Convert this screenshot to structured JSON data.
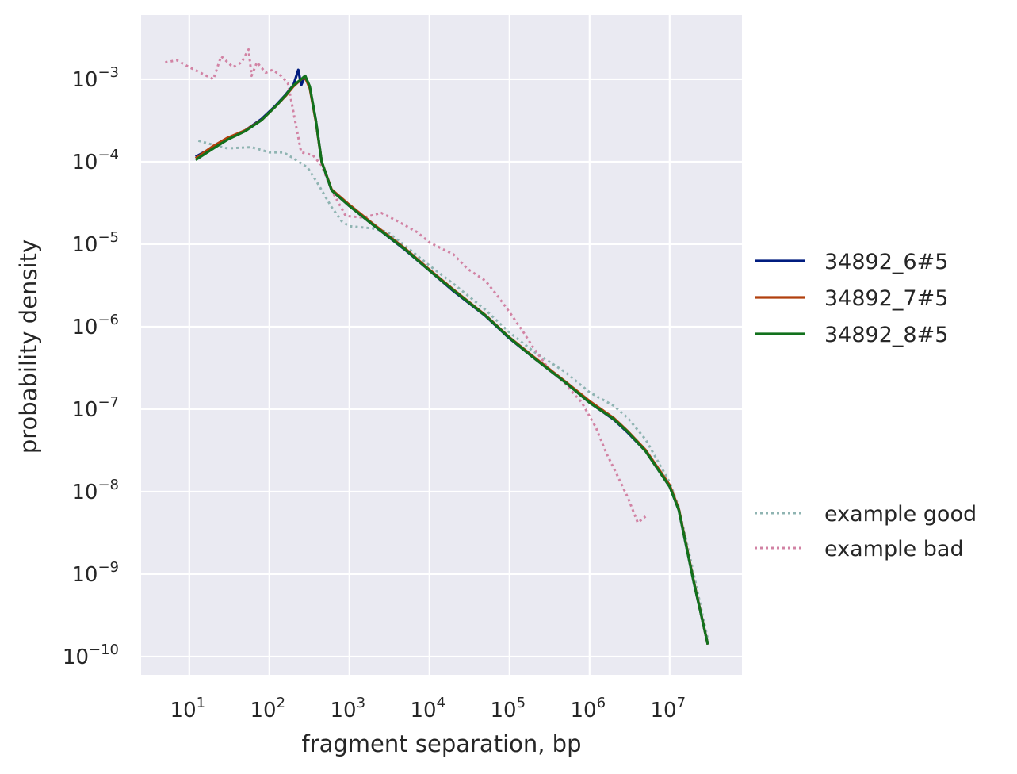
{
  "chart_data": {
    "type": "line",
    "xlabel": "fragment separation, bp",
    "ylabel": "probability density",
    "xscale": "log",
    "yscale": "log",
    "xlim": [
      2.5,
      80000000
    ],
    "ylim": [
      6e-11,
      0.006
    ],
    "xticks": [
      {
        "base": "10",
        "exp": "1",
        "value": 10
      },
      {
        "base": "10",
        "exp": "2",
        "value": 100
      },
      {
        "base": "10",
        "exp": "3",
        "value": 1000
      },
      {
        "base": "10",
        "exp": "4",
        "value": 10000
      },
      {
        "base": "10",
        "exp": "5",
        "value": 100000
      },
      {
        "base": "10",
        "exp": "6",
        "value": 1000000
      },
      {
        "base": "10",
        "exp": "7",
        "value": 10000000
      }
    ],
    "yticks": [
      {
        "base": "10",
        "exp": "−3",
        "value": 0.001
      },
      {
        "base": "10",
        "exp": "−4",
        "value": 0.0001
      },
      {
        "base": "10",
        "exp": "−5",
        "value": 1e-05
      },
      {
        "base": "10",
        "exp": "−6",
        "value": 1e-06
      },
      {
        "base": "10",
        "exp": "−7",
        "value": 1e-07
      },
      {
        "base": "10",
        "exp": "−8",
        "value": 1e-08
      },
      {
        "base": "10",
        "exp": "−9",
        "value": 1e-09
      },
      {
        "base": "10",
        "exp": "−10",
        "value": 1e-10
      }
    ],
    "grid": true,
    "legend_placement": "right",
    "background": "#eaeaf2",
    "series": [
      {
        "name": "34892_6#5",
        "color": "#001c7f",
        "style": "solid",
        "points": [
          [
            12,
            0.000115
          ],
          [
            20,
            0.00015
          ],
          [
            30,
            0.00019
          ],
          [
            50,
            0.00024
          ],
          [
            80,
            0.00033
          ],
          [
            120,
            0.00048
          ],
          [
            160,
            0.00065
          ],
          [
            200,
            0.00085
          ],
          [
            230,
            0.0013
          ],
          [
            250,
            0.00085
          ],
          [
            280,
            0.0011
          ],
          [
            320,
            0.0008
          ],
          [
            380,
            0.00032
          ],
          [
            450,
            0.0001
          ],
          [
            600,
            4.5e-05
          ],
          [
            1000,
            2.9e-05
          ],
          [
            2000,
            1.7e-05
          ],
          [
            5000,
            8.5e-06
          ],
          [
            10000,
            4.8e-06
          ],
          [
            20000,
            2.7e-06
          ],
          [
            50000,
            1.35e-06
          ],
          [
            100000,
            7.2e-07
          ],
          [
            200000,
            4.2e-07
          ],
          [
            500000,
            2.1e-07
          ],
          [
            1000000,
            1.2e-07
          ],
          [
            2000000,
            7.5e-08
          ],
          [
            3000000,
            5.2e-08
          ],
          [
            5000000,
            3.1e-08
          ],
          [
            10000000,
            1.15e-08
          ],
          [
            13000000,
            6e-09
          ],
          [
            20000000,
            8e-10
          ],
          [
            30000000,
            1.4e-10
          ]
        ]
      },
      {
        "name": "34892_7#5",
        "color": "#b1400d",
        "style": "solid",
        "points": [
          [
            12,
            0.00011
          ],
          [
            20,
            0.000155
          ],
          [
            30,
            0.000195
          ],
          [
            50,
            0.00024
          ],
          [
            80,
            0.00032
          ],
          [
            120,
            0.00047
          ],
          [
            160,
            0.00063
          ],
          [
            200,
            0.00082
          ],
          [
            250,
            0.001
          ],
          [
            280,
            0.00105
          ],
          [
            320,
            0.00078
          ],
          [
            380,
            0.00031
          ],
          [
            450,
            0.0001
          ],
          [
            600,
            4.6e-05
          ],
          [
            1000,
            3e-05
          ],
          [
            2000,
            1.75e-05
          ],
          [
            5000,
            8.8e-06
          ],
          [
            10000,
            4.9e-06
          ],
          [
            20000,
            2.8e-06
          ],
          [
            50000,
            1.38e-06
          ],
          [
            100000,
            7.4e-07
          ],
          [
            200000,
            4.3e-07
          ],
          [
            500000,
            2.15e-07
          ],
          [
            1000000,
            1.25e-07
          ],
          [
            2000000,
            7.8e-08
          ],
          [
            3000000,
            5.4e-08
          ],
          [
            5000000,
            3.2e-08
          ],
          [
            10000000,
            1.2e-08
          ],
          [
            13000000,
            6.2e-09
          ],
          [
            20000000,
            8.2e-10
          ],
          [
            30000000,
            1.4e-10
          ]
        ]
      },
      {
        "name": "34892_8#5",
        "color": "#12711c",
        "style": "solid",
        "points": [
          [
            12,
            0.000105
          ],
          [
            20,
            0.000145
          ],
          [
            30,
            0.000185
          ],
          [
            50,
            0.000235
          ],
          [
            80,
            0.00032
          ],
          [
            120,
            0.00047
          ],
          [
            160,
            0.00064
          ],
          [
            200,
            0.00084
          ],
          [
            250,
            0.001
          ],
          [
            280,
            0.0011
          ],
          [
            320,
            0.00082
          ],
          [
            380,
            0.00032
          ],
          [
            450,
            0.0001
          ],
          [
            600,
            4.5e-05
          ],
          [
            1000,
            2.9e-05
          ],
          [
            2000,
            1.7e-05
          ],
          [
            5000,
            8.6e-06
          ],
          [
            10000,
            4.8e-06
          ],
          [
            20000,
            2.75e-06
          ],
          [
            50000,
            1.36e-06
          ],
          [
            100000,
            7.3e-07
          ],
          [
            200000,
            4.2e-07
          ],
          [
            500000,
            2.1e-07
          ],
          [
            1000000,
            1.2e-07
          ],
          [
            2000000,
            7.6e-08
          ],
          [
            3000000,
            5.3e-08
          ],
          [
            5000000,
            3.1e-08
          ],
          [
            10000000,
            1.15e-08
          ],
          [
            13000000,
            6e-09
          ],
          [
            20000000,
            8e-10
          ],
          [
            30000000,
            1.4e-10
          ]
        ]
      },
      {
        "name": "example good",
        "color": "#8fb4b2",
        "style": "dotted",
        "points": [
          [
            13,
            0.00018
          ],
          [
            20,
            0.00016
          ],
          [
            30,
            0.000145
          ],
          [
            60,
            0.00015
          ],
          [
            100,
            0.00013
          ],
          [
            150,
            0.00013
          ],
          [
            200,
            0.00011
          ],
          [
            300,
            8.5e-05
          ],
          [
            400,
            5.5e-05
          ],
          [
            600,
            2.8e-05
          ],
          [
            800,
            1.9e-05
          ],
          [
            1000,
            1.65e-05
          ],
          [
            2000,
            1.55e-05
          ],
          [
            3000,
            1.4e-05
          ],
          [
            5000,
            9.5e-06
          ],
          [
            10000,
            5.5e-06
          ],
          [
            20000,
            3.3e-06
          ],
          [
            50000,
            1.6e-06
          ],
          [
            100000,
            8.5e-07
          ],
          [
            200000,
            5e-07
          ],
          [
            500000,
            2.8e-07
          ],
          [
            1000000,
            1.6e-07
          ],
          [
            2000000,
            1.1e-07
          ],
          [
            3000000,
            7.8e-08
          ],
          [
            5000000,
            4.3e-08
          ],
          [
            10000000,
            1.3e-08
          ],
          [
            13000000,
            6.5e-09
          ],
          [
            20000000,
            1e-09
          ],
          [
            30000000,
            1.6e-10
          ]
        ]
      },
      {
        "name": "example bad",
        "color": "#d283a4",
        "style": "dotted",
        "points": [
          [
            5,
            0.0016
          ],
          [
            7,
            0.0017
          ],
          [
            10,
            0.0014
          ],
          [
            15,
            0.00115
          ],
          [
            20,
            0.001
          ],
          [
            25,
            0.0019
          ],
          [
            35,
            0.0014
          ],
          [
            45,
            0.0016
          ],
          [
            55,
            0.0023
          ],
          [
            60,
            0.0011
          ],
          [
            70,
            0.0016
          ],
          [
            90,
            0.0012
          ],
          [
            110,
            0.0013
          ],
          [
            140,
            0.0011
          ],
          [
            170,
            0.0009
          ],
          [
            200,
            0.0004
          ],
          [
            250,
            0.00013
          ],
          [
            350,
            0.00012
          ],
          [
            450,
            9e-05
          ],
          [
            600,
            4.5e-05
          ],
          [
            900,
            2.2e-05
          ],
          [
            1500,
            2.1e-05
          ],
          [
            2500,
            2.4e-05
          ],
          [
            4000,
            1.9e-05
          ],
          [
            7000,
            1.4e-05
          ],
          [
            10000,
            1.05e-05
          ],
          [
            20000,
            7.5e-06
          ],
          [
            30000,
            5e-06
          ],
          [
            50000,
            3.6e-06
          ],
          [
            70000,
            2.4e-06
          ],
          [
            100000,
            1.5e-06
          ],
          [
            150000,
            8.5e-07
          ],
          [
            200000,
            5.5e-07
          ],
          [
            300000,
            3.2e-07
          ],
          [
            500000,
            2e-07
          ],
          [
            800000,
            1.2e-07
          ],
          [
            1200000,
            6e-08
          ],
          [
            1600000,
            3e-08
          ],
          [
            2200000,
            1.6e-08
          ],
          [
            3000000,
            8.5e-09
          ],
          [
            4000000,
            4.2e-09
          ],
          [
            5000000,
            5e-09
          ]
        ]
      }
    ]
  }
}
